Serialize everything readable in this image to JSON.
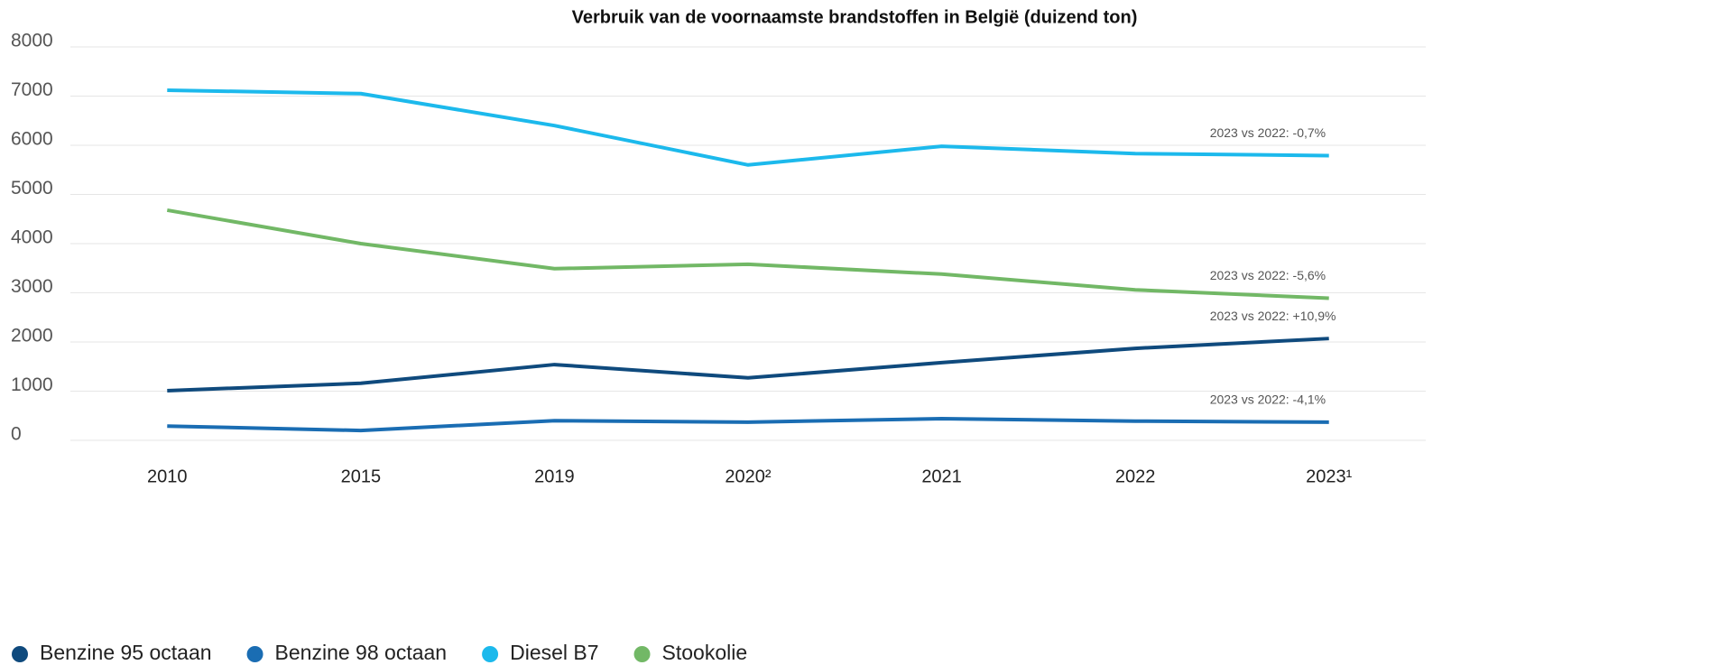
{
  "chart_data": {
    "type": "line",
    "title": "Verbruik van de voornaamste brandstoffen in België (duizend ton)",
    "categories": [
      "2010",
      "2015",
      "2019",
      "2020²",
      "2021",
      "2022",
      "2023¹"
    ],
    "series": [
      {
        "name": "Benzine 95 octaan",
        "color": "#0f4a7d",
        "values": [
          1010,
          1160,
          1540,
          1270,
          1580,
          1870,
          2070
        ],
        "annotation": "2023 vs 2022: +10,9%"
      },
      {
        "name": "Benzine 98 octaan",
        "color": "#1a6db3",
        "values": [
          290,
          200,
          400,
          370,
          440,
          390,
          370
        ],
        "annotation": "2023 vs 2022: -4,1%"
      },
      {
        "name": "Diesel B7",
        "color": "#1cb9ec",
        "values": [
          7120,
          7050,
          6400,
          5600,
          5980,
          5830,
          5790
        ],
        "annotation": "2023 vs 2022: -0,7%"
      },
      {
        "name": "Stookolie",
        "color": "#72b866",
        "values": [
          4680,
          4000,
          3490,
          3580,
          3380,
          3060,
          2890
        ],
        "annotation": "2023 vs 2022: -5,6%"
      }
    ],
    "ylim": [
      0,
      8000
    ],
    "yticks": [
      0,
      1000,
      2000,
      3000,
      4000,
      5000,
      6000,
      7000,
      8000
    ],
    "grid": true,
    "legend": "bottom-left"
  }
}
